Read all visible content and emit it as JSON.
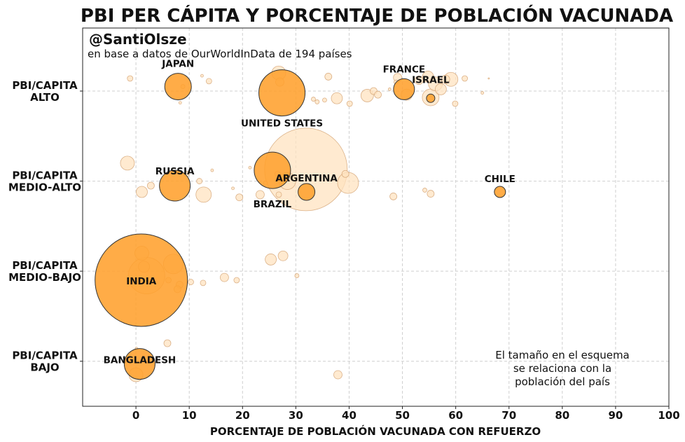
{
  "chart_data": {
    "type": "scatter",
    "title": "PBI PER CÁPITA Y PORCENTAJE DE POBLACIÓN VACUNADA",
    "author": "@SantiOlsze",
    "source": "en base a datos de OurWorldInData de 194 países",
    "xlabel": "PORCENTAJE DE POBLACIÓN VACUNADA CON REFUERZO",
    "xlim": [
      -10,
      100
    ],
    "xticks": [
      "0",
      "10",
      "20",
      "30",
      "40",
      "50",
      "60",
      "70",
      "80",
      "90",
      "100"
    ],
    "ylim": [
      -0.5,
      3.7
    ],
    "yticks": [
      {
        "value": 3,
        "lines": [
          "PBI/CAPITA",
          "ALTO"
        ]
      },
      {
        "value": 2,
        "lines": [
          "PBI/CAPITA",
          "MEDIO-ALTO"
        ]
      },
      {
        "value": 1,
        "lines": [
          "PBI/CAPITA",
          "MEDIO-BAJO"
        ]
      },
      {
        "value": 0,
        "lines": [
          "PBI/CAPITA",
          "BAJO"
        ]
      }
    ],
    "grid": true,
    "note": [
      "El tamaño en el esquema",
      "se relaciona con la",
      "población del país"
    ],
    "colors": {
      "highlight_fill": "#ffa02e",
      "highlight_edge": "#333333",
      "background_fill": "#ffe3c0",
      "background_edge": "#d2a070"
    },
    "highlighted": [
      {
        "name": "JAPAN",
        "x": 7.9,
        "y": 3.05,
        "size": 19
      },
      {
        "name": "UNITED STATES",
        "x": 27.4,
        "y": 2.98,
        "size": 33
      },
      {
        "name": "FRANCE",
        "x": 50.3,
        "y": 3.02,
        "size": 15
      },
      {
        "name": "ISRAEL",
        "x": 55.3,
        "y": 2.92,
        "size": 6
      },
      {
        "name": "RUSSIA",
        "x": 7.3,
        "y": 1.95,
        "size": 22
      },
      {
        "name": "ARGENTINA",
        "x": 32.0,
        "y": 1.88,
        "size": 12
      },
      {
        "name": "BRAZIL",
        "x": 25.6,
        "y": 2.12,
        "size": 26
      },
      {
        "name": "CHILE",
        "x": 68.3,
        "y": 1.88,
        "size": 8
      },
      {
        "name": "INDIA",
        "x": 1.0,
        "y": 0.9,
        "size": 66
      },
      {
        "name": "BANGLADESH",
        "x": 0.7,
        "y": -0.03,
        "size": 22
      }
    ],
    "background": [
      {
        "x": 31.9,
        "y": 2.13,
        "size": 59
      },
      {
        "x": -1.6,
        "y": 2.2,
        "size": 10
      },
      {
        "x": 1.1,
        "y": 1.88,
        "size": 8
      },
      {
        "x": 2.8,
        "y": 1.95,
        "size": 5
      },
      {
        "x": 9.5,
        "y": 2.08,
        "size": 4
      },
      {
        "x": 11.9,
        "y": 2.0,
        "size": 4
      },
      {
        "x": 12.7,
        "y": 1.85,
        "size": 11
      },
      {
        "x": 14.3,
        "y": 2.12,
        "size": 2
      },
      {
        "x": 18.2,
        "y": 1.92,
        "size": 2
      },
      {
        "x": 19.4,
        "y": 1.82,
        "size": 5
      },
      {
        "x": 23.3,
        "y": 1.85,
        "size": 6
      },
      {
        "x": 26.8,
        "y": 1.85,
        "size": 4
      },
      {
        "x": 28.4,
        "y": 2.0,
        "size": 12
      },
      {
        "x": 39.3,
        "y": 2.08,
        "size": 5
      },
      {
        "x": 39.8,
        "y": 1.98,
        "size": 15
      },
      {
        "x": 48.3,
        "y": 1.83,
        "size": 5
      },
      {
        "x": 54.2,
        "y": 1.9,
        "size": 3
      },
      {
        "x": 55.3,
        "y": 1.86,
        "size": 5
      },
      {
        "x": 21.4,
        "y": 2.15,
        "size": 2
      },
      {
        "x": 26.6,
        "y": 2.08,
        "size": 4
      },
      {
        "x": 24.3,
        "y": 1.98,
        "size": 3
      },
      {
        "x": -1.1,
        "y": 3.14,
        "size": 4
      },
      {
        "x": 12.4,
        "y": 3.17,
        "size": 2
      },
      {
        "x": 13.7,
        "y": 3.11,
        "size": 4
      },
      {
        "x": 8.8,
        "y": 3.05,
        "size": 3
      },
      {
        "x": 8.3,
        "y": 2.87,
        "size": 2
      },
      {
        "x": 26.8,
        "y": 3.2,
        "size": 10
      },
      {
        "x": 27.0,
        "y": 3.1,
        "size": 6
      },
      {
        "x": 36.1,
        "y": 3.16,
        "size": 5
      },
      {
        "x": 33.3,
        "y": 2.91,
        "size": 3
      },
      {
        "x": 34.0,
        "y": 2.88,
        "size": 3
      },
      {
        "x": 35.4,
        "y": 2.9,
        "size": 3
      },
      {
        "x": 37.7,
        "y": 2.92,
        "size": 8
      },
      {
        "x": 40.1,
        "y": 2.86,
        "size": 4
      },
      {
        "x": 43.4,
        "y": 2.95,
        "size": 9
      },
      {
        "x": 44.6,
        "y": 3.0,
        "size": 5
      },
      {
        "x": 45.4,
        "y": 2.96,
        "size": 5
      },
      {
        "x": 47.6,
        "y": 3.02,
        "size": 2
      },
      {
        "x": 48.8,
        "y": 3.1,
        "size": 3
      },
      {
        "x": 49.1,
        "y": 3.15,
        "size": 6
      },
      {
        "x": 53.1,
        "y": 3.12,
        "size": 6
      },
      {
        "x": 54.8,
        "y": 3.16,
        "size": 8
      },
      {
        "x": 56.2,
        "y": 3.08,
        "size": 10
      },
      {
        "x": 57.2,
        "y": 3.02,
        "size": 8
      },
      {
        "x": 58.1,
        "y": 3.13,
        "size": 6
      },
      {
        "x": 59.1,
        "y": 3.13,
        "size": 10
      },
      {
        "x": 55.3,
        "y": 2.93,
        "size": 12
      },
      {
        "x": 61.7,
        "y": 3.14,
        "size": 4
      },
      {
        "x": 59.9,
        "y": 2.86,
        "size": 4
      },
      {
        "x": 65.0,
        "y": 2.98,
        "size": 2
      },
      {
        "x": 66.2,
        "y": 3.14,
        "size": 1
      },
      {
        "x": 50.8,
        "y": 2.96,
        "size": 8
      },
      {
        "x": 1.1,
        "y": 1.2,
        "size": 10
      },
      {
        "x": 1.5,
        "y": 1.05,
        "size": 8
      },
      {
        "x": 7.0,
        "y": 1.08,
        "size": 14
      },
      {
        "x": 10.3,
        "y": 0.88,
        "size": 4
      },
      {
        "x": 8.2,
        "y": 0.85,
        "size": 5
      },
      {
        "x": 7.8,
        "y": 0.8,
        "size": 5
      },
      {
        "x": 12.6,
        "y": 0.87,
        "size": 4
      },
      {
        "x": 16.6,
        "y": 0.93,
        "size": 6
      },
      {
        "x": 18.9,
        "y": 0.9,
        "size": 4
      },
      {
        "x": 25.3,
        "y": 1.13,
        "size": 8
      },
      {
        "x": 27.6,
        "y": 1.17,
        "size": 7
      },
      {
        "x": 30.2,
        "y": 0.95,
        "size": 3
      },
      {
        "x": 6.1,
        "y": 0.9,
        "size": 4
      },
      {
        "x": 2.0,
        "y": 0.95,
        "size": 26
      },
      {
        "x": 5.9,
        "y": 0.2,
        "size": 5
      },
      {
        "x": 0.1,
        "y": 0.14,
        "size": 2
      },
      {
        "x": 0.0,
        "y": -0.15,
        "size": 10
      },
      {
        "x": 37.9,
        "y": -0.15,
        "size": 6
      }
    ]
  }
}
